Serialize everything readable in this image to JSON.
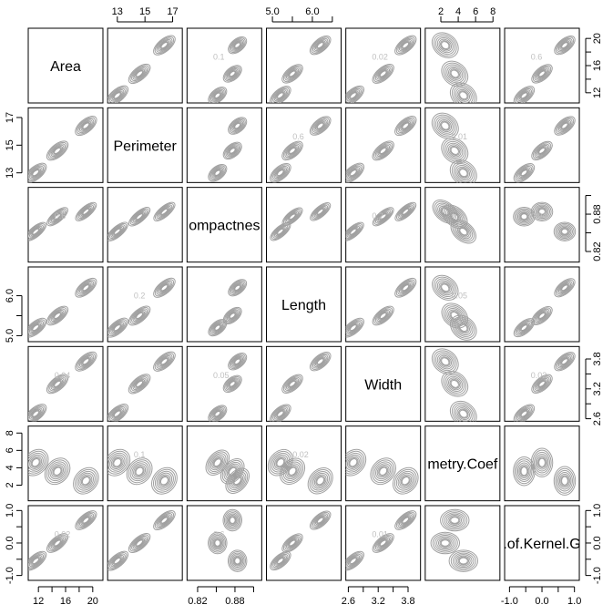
{
  "chart_data": {
    "type": "pairs-contour",
    "variables": [
      "Area",
      "Perimeter",
      "Compactness",
      "Length",
      "Width",
      "Asymmetry.Coef",
      "Length.of.Kernel.Groove"
    ],
    "diagonal_labels": [
      "Area",
      "Perimeter",
      "ompactnes",
      "Length",
      "Width",
      "metry.Coef",
      ".of.Kernel.G"
    ],
    "ranges": [
      [
        10.5,
        21.5
      ],
      [
        12.3,
        17.7
      ],
      [
        0.803,
        0.923
      ],
      [
        4.85,
        6.72
      ],
      [
        2.55,
        4.05
      ],
      [
        0.2,
        8.8
      ],
      [
        -1.15,
        1.15
      ]
    ],
    "modes": [
      [
        11.6,
        14.8,
        19.0
      ],
      [
        13.0,
        14.6,
        16.4
      ],
      [
        0.852,
        0.876,
        0.884
      ],
      [
        5.2,
        5.5,
        6.2
      ],
      [
        2.7,
        3.3,
        3.75
      ],
      [
        2.5,
        3.6,
        4.6
      ],
      [
        -0.55,
        0.0,
        0.7
      ]
    ],
    "axes": [
      {
        "side": "top",
        "var": 1,
        "ticks": [
          13,
          15,
          17
        ],
        "labels": [
          "13",
          "15",
          "17"
        ]
      },
      {
        "side": "top",
        "var": 3,
        "ticks": [
          5.0,
          5.5,
          6.0,
          6.5
        ],
        "labels": [
          "5.0",
          "",
          "6.0",
          ""
        ]
      },
      {
        "side": "top",
        "var": 5,
        "ticks": [
          2,
          4,
          6,
          8
        ],
        "labels": [
          "2",
          "4",
          "6",
          "8"
        ]
      },
      {
        "side": "bottom",
        "var": 0,
        "ticks": [
          12,
          14,
          16,
          18,
          20
        ],
        "labels": [
          "12",
          "",
          "16",
          "",
          "20"
        ]
      },
      {
        "side": "bottom",
        "var": 2,
        "ticks": [
          0.82,
          0.85,
          0.88,
          0.91
        ],
        "labels": [
          "0.82",
          "",
          "0.88",
          ""
        ]
      },
      {
        "side": "bottom",
        "var": 4,
        "ticks": [
          2.6,
          2.9,
          3.2,
          3.5,
          3.8
        ],
        "labels": [
          "2.6",
          "",
          "3.2",
          "",
          "3.8"
        ]
      },
      {
        "side": "bottom",
        "var": 6,
        "ticks": [
          -1.0,
          -0.5,
          0.0,
          0.5,
          1.0
        ],
        "labels": [
          "-1.0",
          "",
          "0.0",
          "",
          "1.0"
        ]
      },
      {
        "side": "left",
        "var": 1,
        "ticks": [
          13,
          15,
          17
        ],
        "labels": [
          "13",
          "15",
          "17"
        ]
      },
      {
        "side": "left",
        "var": 3,
        "ticks": [
          5.0,
          5.5,
          6.0
        ],
        "labels": [
          "5.0",
          "",
          "6.0"
        ]
      },
      {
        "side": "left",
        "var": 5,
        "ticks": [
          2,
          4,
          6,
          8
        ],
        "labels": [
          "2",
          "4",
          "6",
          "8"
        ]
      },
      {
        "side": "left",
        "var": 6,
        "ticks": [
          -1.0,
          -0.5,
          0.0,
          0.5,
          1.0
        ],
        "labels": [
          "-1.0",
          "",
          "0.0",
          "",
          "1.0"
        ]
      },
      {
        "side": "right",
        "var": 0,
        "ticks": [
          12,
          14,
          16,
          18,
          20
        ],
        "labels": [
          "12",
          "",
          "16",
          "",
          "20"
        ]
      },
      {
        "side": "right",
        "var": 2,
        "ticks": [
          0.82,
          0.85,
          0.88,
          0.91
        ],
        "labels": [
          "0.82",
          "",
          "0.88",
          ""
        ]
      },
      {
        "side": "right",
        "var": 4,
        "ticks": [
          2.6,
          2.9,
          3.2,
          3.5,
          3.8
        ],
        "labels": [
          "2.6",
          "",
          "3.2",
          "",
          "3.8"
        ]
      },
      {
        "side": "right",
        "var": 6,
        "ticks": [
          -1.0,
          -0.5,
          0.0,
          0.5,
          1.0
        ],
        "labels": [
          "-1.0",
          "",
          "0.0",
          "",
          "1.0"
        ]
      }
    ],
    "contour_labels": [
      "0.05",
      "0.01",
      "0.1",
      "0.2",
      "0.02",
      "0.04",
      "0.6"
    ],
    "grid": false,
    "colors": {
      "contour": "#a0a0a0",
      "frame": "#000000",
      "background": "#ffffff"
    }
  }
}
